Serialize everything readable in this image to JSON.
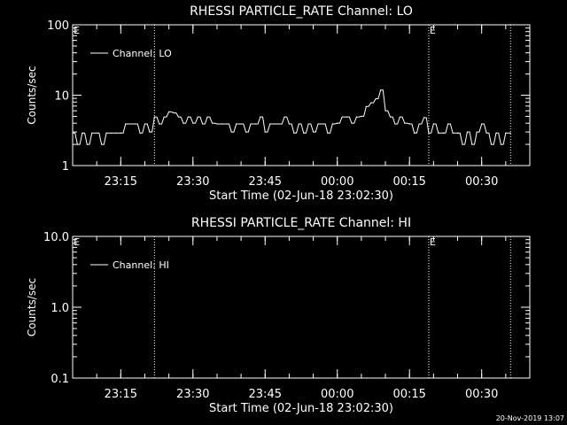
{
  "footer_timestamp": "20-Nov-2019 13:07",
  "chart_data": [
    {
      "type": "line",
      "title": "RHESSI PARTICLE_RATE Channel: LO",
      "xlabel": "Start Time (02-Jun-18 23:02:30)",
      "ylabel": "Counts/sec",
      "yscale": "log",
      "ylim": [
        1,
        100
      ],
      "y_tick_labels": [
        "1",
        "10",
        "100"
      ],
      "y_tick_values": [
        1,
        10,
        100
      ],
      "xlim": [
        "23:05:00",
        "00:40:00"
      ],
      "x_tick_labels": [
        "23:15",
        "23:30",
        "23:45",
        "00:00",
        "00:15",
        "00:30"
      ],
      "x_tick_values": [
        "23:15",
        "23:30",
        "23:45",
        "00:00",
        "00:15",
        "00:30"
      ],
      "grid": false,
      "legend": {
        "placement": "top-left",
        "entries": [
          "Channel: LO"
        ]
      },
      "event_marks": [
        {
          "time": "23:22:00",
          "label": ""
        },
        {
          "time": "00:19:00",
          "label": "E"
        },
        {
          "time": "00:36:00",
          "label": ""
        }
      ],
      "corner_label": "E",
      "series": [
        {
          "name": "Channel: LO",
          "x": [
            "23:05",
            "23:06",
            "23:07",
            "23:08",
            "23:09",
            "23:10",
            "23:11",
            "23:12",
            "23:13",
            "23:14",
            "23:15",
            "23:16",
            "23:17",
            "23:18",
            "23:19",
            "23:20",
            "23:21",
            "23:22",
            "23:23",
            "23:24",
            "23:25",
            "23:26",
            "23:27",
            "23:28",
            "23:29",
            "23:30",
            "23:31",
            "23:32",
            "23:33",
            "23:34",
            "23:35",
            "23:36",
            "23:37",
            "23:38",
            "23:39",
            "23:40",
            "23:41",
            "23:42",
            "23:43",
            "23:44",
            "23:45",
            "23:46",
            "23:47",
            "23:48",
            "23:49",
            "23:50",
            "23:51",
            "23:52",
            "23:53",
            "23:54",
            "23:55",
            "23:56",
            "23:57",
            "23:58",
            "23:59",
            "00:00",
            "00:01",
            "00:02",
            "00:03",
            "00:04",
            "00:05",
            "00:06",
            "00:07",
            "00:08",
            "00:09",
            "00:10",
            "00:11",
            "00:12",
            "00:13",
            "00:14",
            "00:15",
            "00:16",
            "00:17",
            "00:18",
            "00:19",
            "00:20",
            "00:21",
            "00:22",
            "00:23",
            "00:24",
            "00:25",
            "00:26",
            "00:27",
            "00:28",
            "00:29",
            "00:30",
            "00:31",
            "00:32",
            "00:33",
            "00:34",
            "00:35",
            "00:36"
          ],
          "y": [
            2.9,
            2.0,
            2.9,
            2.0,
            2.9,
            2.9,
            2.0,
            2.9,
            2.9,
            2.9,
            2.9,
            3.9,
            3.9,
            3.9,
            2.9,
            3.9,
            3.0,
            4.9,
            3.9,
            4.9,
            5.8,
            5.6,
            4.9,
            4.0,
            4.9,
            4.0,
            4.9,
            3.9,
            4.9,
            4.0,
            3.9,
            3.9,
            3.9,
            3.0,
            3.9,
            3.9,
            3.0,
            3.9,
            3.9,
            4.9,
            3.0,
            3.9,
            3.9,
            3.9,
            4.9,
            3.9,
            2.9,
            3.9,
            2.9,
            3.9,
            3.0,
            3.9,
            3.9,
            2.9,
            3.9,
            4.0,
            4.9,
            4.9,
            4.0,
            4.9,
            5.0,
            6.9,
            7.8,
            8.9,
            11.8,
            6.0,
            4.9,
            3.9,
            4.9,
            4.0,
            3.9,
            2.9,
            3.9,
            4.8,
            2.9,
            3.9,
            2.9,
            2.9,
            3.9,
            2.9,
            2.9,
            2.0,
            3.0,
            2.0,
            3.0,
            3.9,
            2.9,
            2.0,
            2.9,
            2.0,
            2.9,
            2.9
          ]
        }
      ]
    },
    {
      "type": "line",
      "title": "RHESSI PARTICLE_RATE Channel: HI",
      "xlabel": "Start Time (02-Jun-18 23:02:30)",
      "ylabel": "Counts/sec",
      "yscale": "log",
      "ylim": [
        0.1,
        10
      ],
      "y_tick_labels": [
        "0.1",
        "1.0",
        "10.0"
      ],
      "y_tick_values": [
        0.1,
        1,
        10
      ],
      "xlim": [
        "23:05:00",
        "00:40:00"
      ],
      "x_tick_labels": [
        "23:15",
        "23:30",
        "23:45",
        "00:00",
        "00:15",
        "00:30"
      ],
      "x_tick_values": [
        "23:15",
        "23:30",
        "23:45",
        "00:00",
        "00:15",
        "00:30"
      ],
      "grid": false,
      "legend": {
        "placement": "top-left",
        "entries": [
          "Channel: HI"
        ]
      },
      "event_marks": [
        {
          "time": "23:22:00",
          "label": ""
        },
        {
          "time": "00:19:00",
          "label": "E"
        },
        {
          "time": "00:36:00",
          "label": ""
        }
      ],
      "corner_label": "E",
      "series": [
        {
          "name": "Channel: HI",
          "x": [],
          "y": []
        }
      ]
    }
  ]
}
